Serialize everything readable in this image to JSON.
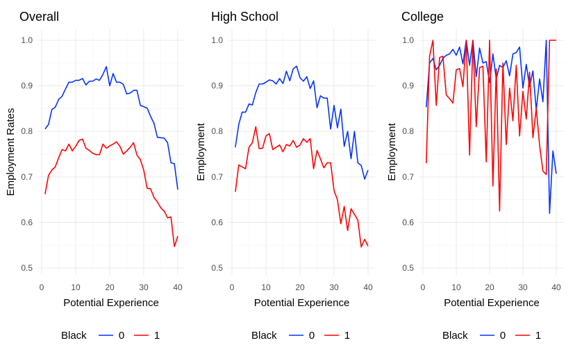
{
  "chart_data": [
    {
      "type": "line",
      "title": "Overall",
      "xlabel": "Potential Experience",
      "ylabel": "Employment Rates",
      "xlim": [
        0,
        40
      ],
      "ylim": [
        0.5,
        1.0
      ],
      "xticks": [
        0,
        10,
        20,
        30,
        40
      ],
      "yticks": [
        "0.5",
        "0.6",
        "0.7",
        "0.8",
        "0.9",
        "1.0"
      ],
      "grid": true,
      "series": [
        {
          "name": "0",
          "color": "#0433ff",
          "values": [
            0.805,
            0.815,
            0.848,
            0.853,
            0.87,
            0.877,
            0.893,
            0.908,
            0.908,
            0.912,
            0.912,
            0.916,
            0.902,
            0.91,
            0.91,
            0.915,
            0.912,
            0.925,
            0.942,
            0.9,
            0.927,
            0.908,
            0.908,
            0.903,
            0.882,
            0.884,
            0.89,
            0.89,
            0.857,
            0.854,
            0.851,
            0.833,
            0.818,
            0.787,
            0.786,
            0.785,
            0.775,
            0.731,
            0.729,
            0.672
          ]
        },
        {
          "name": "1",
          "color": "#ff0000",
          "values": [
            0.662,
            0.703,
            0.715,
            0.722,
            0.742,
            0.76,
            0.757,
            0.772,
            0.757,
            0.767,
            0.78,
            0.783,
            0.763,
            0.758,
            0.752,
            0.749,
            0.749,
            0.772,
            0.763,
            0.768,
            0.772,
            0.777,
            0.767,
            0.75,
            0.757,
            0.765,
            0.775,
            0.748,
            0.738,
            0.715,
            0.675,
            0.674,
            0.655,
            0.645,
            0.632,
            0.625,
            0.61,
            0.612,
            0.547,
            0.57
          ]
        }
      ]
    },
    {
      "type": "line",
      "title": "High School",
      "xlabel": "Potential Experience",
      "ylabel": "Employment",
      "xlim": [
        0,
        40
      ],
      "ylim": [
        0.5,
        1.0
      ],
      "xticks": [
        0,
        10,
        20,
        30,
        40
      ],
      "yticks": [
        "0.5",
        "0.6",
        "0.7",
        "0.8",
        "0.9",
        "1.0"
      ],
      "grid": true,
      "series": [
        {
          "name": "0",
          "color": "#0433ff",
          "values": [
            0.765,
            0.815,
            0.842,
            0.842,
            0.86,
            0.858,
            0.885,
            0.904,
            0.904,
            0.908,
            0.913,
            0.911,
            0.904,
            0.916,
            0.905,
            0.932,
            0.911,
            0.937,
            0.943,
            0.918,
            0.91,
            0.92,
            0.894,
            0.911,
            0.852,
            0.878,
            0.873,
            0.873,
            0.805,
            0.857,
            0.808,
            0.849,
            0.767,
            0.8,
            0.74,
            0.8,
            0.731,
            0.725,
            0.695,
            0.715
          ]
        },
        {
          "name": "1",
          "color": "#ff0000",
          "values": [
            0.667,
            0.726,
            0.722,
            0.718,
            0.765,
            0.775,
            0.81,
            0.762,
            0.763,
            0.79,
            0.795,
            0.76,
            0.765,
            0.77,
            0.755,
            0.771,
            0.768,
            0.78,
            0.765,
            0.77,
            0.784,
            0.776,
            0.784,
            0.718,
            0.758,
            0.74,
            0.72,
            0.731,
            0.731,
            0.67,
            0.65,
            0.597,
            0.635,
            0.582,
            0.63,
            0.618,
            0.605,
            0.546,
            0.563,
            0.548
          ]
        }
      ]
    },
    {
      "type": "line",
      "title": "College",
      "xlabel": "Potential Experience",
      "ylabel": "Employment",
      "xlim": [
        0,
        40
      ],
      "ylim": [
        0.5,
        1.0
      ],
      "xticks": [
        0,
        10,
        20,
        30,
        40
      ],
      "yticks": [
        "0.5",
        "0.6",
        "0.7",
        "0.8",
        "0.9",
        "1.0"
      ],
      "grid": true,
      "series": [
        {
          "name": "0",
          "color": "#0433ff",
          "values": [
            0.853,
            0.95,
            0.96,
            0.935,
            0.945,
            0.96,
            0.967,
            0.97,
            0.98,
            0.967,
            0.985,
            0.948,
            1.0,
            0.945,
            1.0,
            0.92,
            0.983,
            0.95,
            0.953,
            0.907,
            0.97,
            0.915,
            0.945,
            0.94,
            0.955,
            0.922,
            0.97,
            0.973,
            0.985,
            0.895,
            0.947,
            0.898,
            0.933,
            0.847,
            0.915,
            0.865,
            1.0,
            0.62,
            0.757,
            0.707
          ]
        },
        {
          "name": "1",
          "color": "#ff0000",
          "values": [
            0.73,
            0.965,
            1.0,
            0.857,
            0.962,
            0.965,
            0.88,
            0.872,
            0.862,
            0.935,
            0.938,
            0.898,
            1.0,
            0.748,
            1.0,
            0.81,
            0.94,
            0.943,
            0.733,
            1.0,
            0.68,
            0.937,
            0.625,
            0.95,
            0.771,
            0.895,
            0.823,
            0.945,
            0.79,
            0.888,
            0.827,
            0.93,
            0.786,
            0.85,
            0.77,
            0.713,
            0.705,
            1.0,
            1.0,
            1.0
          ]
        }
      ]
    }
  ],
  "legend": {
    "title": "Black",
    "placement": "bottom",
    "entries": [
      "0",
      "1"
    ]
  }
}
